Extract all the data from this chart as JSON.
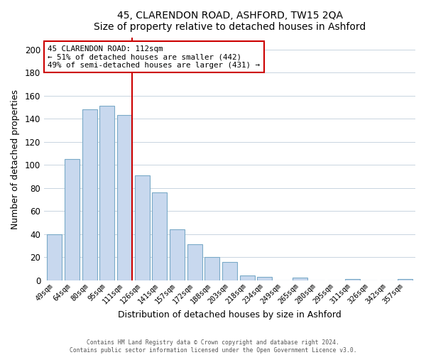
{
  "title1": "45, CLARENDON ROAD, ASHFORD, TW15 2QA",
  "title2": "Size of property relative to detached houses in Ashford",
  "xlabel": "Distribution of detached houses by size in Ashford",
  "ylabel": "Number of detached properties",
  "categories": [
    "49sqm",
    "64sqm",
    "80sqm",
    "95sqm",
    "111sqm",
    "126sqm",
    "141sqm",
    "157sqm",
    "172sqm",
    "188sqm",
    "203sqm",
    "218sqm",
    "234sqm",
    "249sqm",
    "265sqm",
    "280sqm",
    "295sqm",
    "311sqm",
    "326sqm",
    "342sqm",
    "357sqm"
  ],
  "values": [
    40,
    105,
    148,
    151,
    143,
    91,
    76,
    44,
    31,
    20,
    16,
    4,
    3,
    0,
    2,
    0,
    0,
    1,
    0,
    0,
    1
  ],
  "bar_color": "#c8d8ee",
  "bar_edge_color": "#7aaac8",
  "highlight_index": 4,
  "highlight_line_color": "#cc0000",
  "annotation_title": "45 CLARENDON ROAD: 112sqm",
  "annotation_line1": "← 51% of detached houses are smaller (442)",
  "annotation_line2": "49% of semi-detached houses are larger (431) →",
  "annotation_box_edge": "#cc0000",
  "ylim": [
    0,
    210
  ],
  "yticks": [
    0,
    20,
    40,
    60,
    80,
    100,
    120,
    140,
    160,
    180,
    200
  ],
  "footer1": "Contains HM Land Registry data © Crown copyright and database right 2024.",
  "footer2": "Contains public sector information licensed under the Open Government Licence v3.0."
}
